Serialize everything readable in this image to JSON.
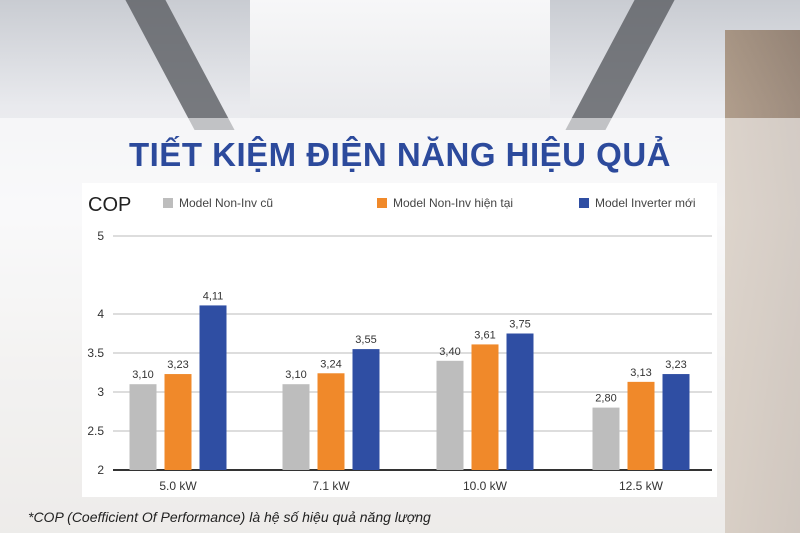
{
  "title": "TIẾT KIỆM ĐIỆN NĂNG HIỆU QUẢ",
  "footnote": "*COP (Coefficient Of Performance) là hệ số hiệu quả năng lượng",
  "chart_data": {
    "type": "bar",
    "ylabel": "COP",
    "ylim": [
      2,
      5
    ],
    "yticks": [
      "2",
      "2.5",
      "3",
      "3.5",
      "4",
      "5"
    ],
    "grid": true,
    "legend_position": "top",
    "categories": [
      "5.0 kW",
      "7.1 kW",
      "10.0 kW",
      "12.5 kW"
    ],
    "series": [
      {
        "name": "Model Non-Inv cũ",
        "color": "#bdbdbd",
        "values": [
          3.1,
          3.1,
          3.4,
          2.8
        ],
        "labels": [
          "3,10",
          "3,10",
          "3,40",
          "2,80"
        ]
      },
      {
        "name": "Model Non-Inv hiện tại",
        "color": "#f0892a",
        "values": [
          3.23,
          3.24,
          3.61,
          3.13
        ],
        "labels": [
          "3,23",
          "3,24",
          "3,61",
          "3,13"
        ]
      },
      {
        "name": "Model Inverter mới",
        "color": "#2f4ea3",
        "values": [
          4.11,
          3.55,
          3.75,
          3.23
        ],
        "labels": [
          "4,11",
          "3,55",
          "3,75",
          "3,23"
        ]
      }
    ]
  }
}
